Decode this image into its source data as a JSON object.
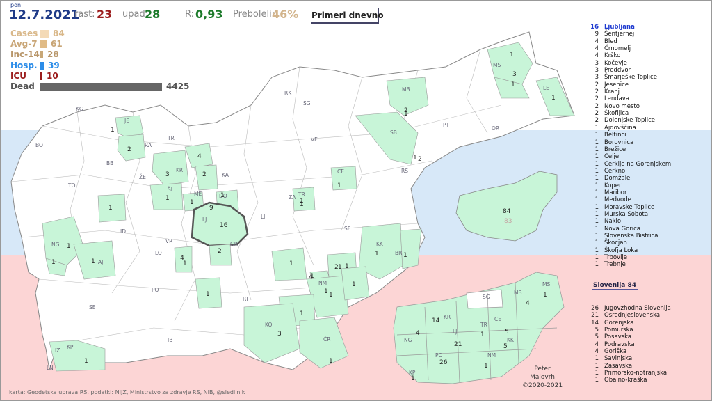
{
  "header": {
    "day": "pon",
    "date": "12.7.2021",
    "rast_label": "rast:",
    "rast_value": "23",
    "upad_label": "upad:",
    "upad_value": "28",
    "r_label": "R:",
    "r_value": "0,93",
    "preboleli_label": "Preboleli:",
    "preboleli_value": "46%",
    "mode_button": "Primeri dnevno"
  },
  "legend": [
    {
      "label": "Cases",
      "value": "84",
      "color": "#f4dab6",
      "level": 84
    },
    {
      "label": "Avg-7",
      "value": "61",
      "color": "#e0bb86",
      "level": 61
    },
    {
      "label": "Inc-14",
      "value": "28",
      "color": "#c8a777",
      "level": 28
    },
    {
      "label": "Hosp.",
      "value": "39",
      "color": "#2b8ce8",
      "level": 39
    },
    {
      "label": "ICU",
      "value": "10",
      "color": "#9b1c1c",
      "level": 10
    },
    {
      "label": "Dead",
      "value": "4425",
      "color": "#666666",
      "level": 4425
    }
  ],
  "colors": {
    "positive": "#c8f5d8",
    "muni_stroke": "#aaaaaa",
    "title": "#1f3b88"
  },
  "municipalities": [
    {
      "n": "16",
      "name": "Ljubljana"
    },
    {
      "n": "9",
      "name": "Šentjernej"
    },
    {
      "n": "4",
      "name": "Bled"
    },
    {
      "n": "4",
      "name": "Črnomelj"
    },
    {
      "n": "4",
      "name": "Krško"
    },
    {
      "n": "3",
      "name": "Kočevje"
    },
    {
      "n": "3",
      "name": "Preddvor"
    },
    {
      "n": "3",
      "name": "Šmarješke Toplice"
    },
    {
      "n": "2",
      "name": "Jesenice"
    },
    {
      "n": "2",
      "name": "Kranj"
    },
    {
      "n": "2",
      "name": "Lendava"
    },
    {
      "n": "2",
      "name": "Novo mesto"
    },
    {
      "n": "2",
      "name": "Škofljica"
    },
    {
      "n": "2",
      "name": "Dolenjske Toplice"
    },
    {
      "n": "1",
      "name": "Ajdovščina"
    },
    {
      "n": "1",
      "name": "Beltinci"
    },
    {
      "n": "1",
      "name": "Borovnica"
    },
    {
      "n": "1",
      "name": "Brežice"
    },
    {
      "n": "1",
      "name": "Celje"
    },
    {
      "n": "1",
      "name": "Cerklje na Gorenjskem"
    },
    {
      "n": "1",
      "name": "Cerkno"
    },
    {
      "n": "1",
      "name": "Domžale"
    },
    {
      "n": "1",
      "name": "Koper"
    },
    {
      "n": "1",
      "name": "Maribor"
    },
    {
      "n": "1",
      "name": "Medvode"
    },
    {
      "n": "1",
      "name": "Moravske Toplice"
    },
    {
      "n": "1",
      "name": "Murska Sobota"
    },
    {
      "n": "1",
      "name": "Naklo"
    },
    {
      "n": "1",
      "name": "Nova Gorica"
    },
    {
      "n": "1",
      "name": "Slovenska Bistrica"
    },
    {
      "n": "1",
      "name": "Škocjan"
    },
    {
      "n": "1",
      "name": "Škofja Loka"
    },
    {
      "n": "1",
      "name": "Trbovlje"
    },
    {
      "n": "1",
      "name": "Trebnje"
    }
  ],
  "region_selector": "Slovenija 84",
  "regions": [
    {
      "n": "26",
      "name": "Jugovzhodna Slovenija"
    },
    {
      "n": "21",
      "name": "Osrednjeslovenska"
    },
    {
      "n": "14",
      "name": "Gorenjska"
    },
    {
      "n": "5",
      "name": "Pomurska"
    },
    {
      "n": "5",
      "name": "Posavska"
    },
    {
      "n": "4",
      "name": "Podravska"
    },
    {
      "n": "4",
      "name": "Goriška"
    },
    {
      "n": "1",
      "name": "Savinjska"
    },
    {
      "n": "1",
      "name": "Zasavska"
    },
    {
      "n": "1",
      "name": "Primorsko-notranjska"
    },
    {
      "n": "1",
      "name": "Obalno-kraška"
    }
  ],
  "country_mini": {
    "today": "84",
    "prev": "83"
  },
  "main_map": {
    "abbrevs": [
      "KG",
      "JE",
      "BO",
      "RA",
      "TR",
      "RK",
      "SG",
      "MB",
      "MS",
      "LE",
      "PT",
      "OR",
      "SB",
      "VE",
      "BB",
      "KR",
      "ŽE",
      "KA",
      "CE",
      "RS",
      "TO",
      "ME",
      "DO",
      "ZA",
      "TR",
      "ŠL",
      "LJ",
      "LI",
      "SE",
      "KK",
      "BR",
      "ID",
      "VR",
      "GR",
      "NG",
      "AJ",
      "LO",
      "NM",
      "PO",
      "RI",
      "SE",
      "KO",
      "ČR",
      "IZ",
      "KP",
      "LN",
      "IB"
    ],
    "counts": [
      "1",
      "2",
      "4",
      "3",
      "2",
      "1",
      "1",
      "1",
      "1",
      "1",
      "1",
      "1",
      "1",
      "1",
      "1",
      "1",
      "16",
      "2",
      "1",
      "1",
      "1",
      "1",
      "1",
      "1",
      "1",
      "1",
      "1",
      "1",
      "1",
      "4",
      "1",
      "1",
      "1",
      "3",
      "1",
      "9",
      "2",
      "2",
      "3",
      "4",
      "1",
      "1",
      "2",
      "1"
    ]
  },
  "region_map": {
    "abbrevs": [
      "SG",
      "MB",
      "MS",
      "KR",
      "CE",
      "TR",
      "NG",
      "LJ",
      "KK",
      "PO",
      "NM",
      "KP"
    ],
    "counts": [
      "14",
      "1",
      "4",
      "5",
      "4",
      "21",
      "1",
      "5",
      "1",
      "26",
      "1"
    ]
  },
  "credit": {
    "line1": "Peter",
    "line2": "Malovrh",
    "line3": "©2020-2021"
  },
  "source": "karta: Geodetska uprava RS,  podatki: NIJZ, Ministrstvo za zdravje RS, NIB, @sledilnik"
}
